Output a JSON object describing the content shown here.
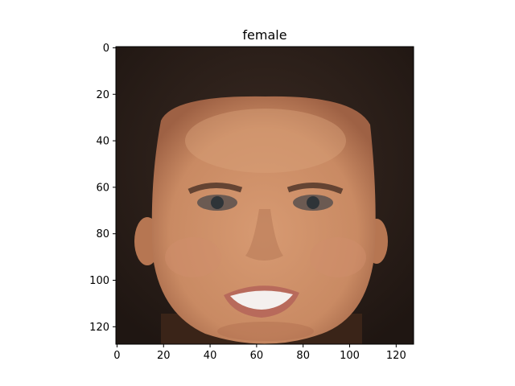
{
  "figure": {
    "title": "female",
    "image_description": "photo of a smiling face with dark hair"
  },
  "axes": {
    "x_ticks": [
      0,
      20,
      40,
      60,
      80,
      100,
      120
    ],
    "y_ticks": [
      0,
      20,
      40,
      60,
      80,
      100,
      120
    ],
    "x_range": [
      -0.5,
      127.5
    ],
    "y_range": [
      -0.5,
      127.5
    ],
    "y_inverted": true
  },
  "colors": {
    "hair": "#2b1d18",
    "skin": "#c98a63",
    "skin_shadow": "#a86b4a",
    "teeth": "#f4f0ee",
    "lips": "#b86a5b",
    "eyes": "#2e3438"
  }
}
